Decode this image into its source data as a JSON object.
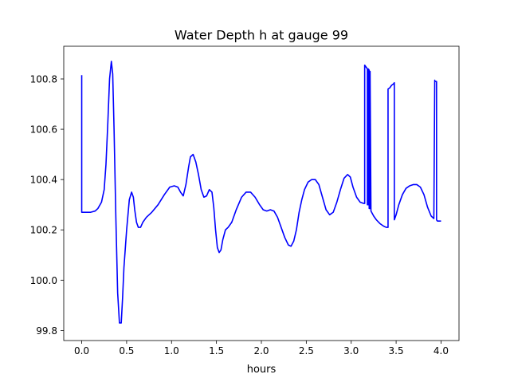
{
  "chart_data": {
    "type": "line",
    "title": "Water Depth h at gauge 99",
    "xlabel": "hours",
    "ylabel": "",
    "xlim": [
      -0.2,
      4.2
    ],
    "ylim": [
      99.76,
      100.93
    ],
    "xticks": [
      0.0,
      0.5,
      1.0,
      1.5,
      2.0,
      2.5,
      3.0,
      3.5,
      4.0
    ],
    "xtick_labels": [
      "0.0",
      "0.5",
      "1.0",
      "1.5",
      "2.0",
      "2.5",
      "3.0",
      "3.5",
      "4.0"
    ],
    "yticks": [
      99.8,
      100.0,
      100.2,
      100.4,
      100.6,
      100.8
    ],
    "ytick_labels": [
      "99.8",
      "100.0",
      "100.2",
      "100.4",
      "100.6",
      "100.8"
    ],
    "grid": false,
    "series": [
      {
        "color": "#0000ff",
        "x": [
          0.0,
          0.0,
          0.001,
          0.05,
          0.1,
          0.15,
          0.18,
          0.22,
          0.25,
          0.27,
          0.29,
          0.31,
          0.33,
          0.345,
          0.36,
          0.38,
          0.4,
          0.42,
          0.44,
          0.455,
          0.47,
          0.5,
          0.53,
          0.555,
          0.575,
          0.59,
          0.61,
          0.63,
          0.655,
          0.68,
          0.72,
          0.78,
          0.85,
          0.92,
          0.98,
          1.03,
          1.07,
          1.1,
          1.13,
          1.16,
          1.19,
          1.21,
          1.24,
          1.27,
          1.3,
          1.33,
          1.36,
          1.39,
          1.42,
          1.45,
          1.47,
          1.49,
          1.51,
          1.53,
          1.55,
          1.57,
          1.6,
          1.63,
          1.67,
          1.72,
          1.78,
          1.83,
          1.88,
          1.93,
          1.98,
          2.02,
          2.06,
          2.1,
          2.14,
          2.18,
          2.22,
          2.26,
          2.3,
          2.33,
          2.36,
          2.39,
          2.42,
          2.45,
          2.48,
          2.52,
          2.56,
          2.6,
          2.64,
          2.68,
          2.72,
          2.76,
          2.8,
          2.84,
          2.88,
          2.92,
          2.96,
          2.99,
          3.02,
          3.06,
          3.1,
          3.14,
          3.15,
          3.15,
          3.16,
          3.18,
          3.18,
          3.19,
          3.19,
          3.2,
          3.2,
          3.21,
          3.21,
          3.22,
          3.25,
          3.28,
          3.32,
          3.36,
          3.39,
          3.41,
          3.41,
          3.43,
          3.45,
          3.47,
          3.48,
          3.48,
          3.5,
          3.53,
          3.57,
          3.61,
          3.65,
          3.69,
          3.73,
          3.77,
          3.81,
          3.85,
          3.89,
          3.92,
          3.93,
          3.93,
          3.95,
          3.95,
          3.96,
          3.97,
          4.0
        ],
        "y": [
          100.815,
          100.27,
          100.27,
          100.27,
          100.27,
          100.275,
          100.285,
          100.31,
          100.36,
          100.46,
          100.62,
          100.8,
          100.87,
          100.82,
          100.6,
          100.25,
          99.95,
          99.83,
          99.83,
          99.93,
          100.05,
          100.2,
          100.32,
          100.35,
          100.33,
          100.28,
          100.23,
          100.21,
          100.21,
          100.23,
          100.25,
          100.27,
          100.3,
          100.34,
          100.37,
          100.375,
          100.37,
          100.35,
          100.335,
          100.38,
          100.45,
          100.49,
          100.5,
          100.47,
          100.42,
          100.36,
          100.33,
          100.335,
          100.36,
          100.35,
          100.29,
          100.2,
          100.13,
          100.11,
          100.12,
          100.16,
          100.2,
          100.21,
          100.23,
          100.28,
          100.33,
          100.35,
          100.35,
          100.33,
          100.3,
          100.28,
          100.275,
          100.28,
          100.275,
          100.25,
          100.21,
          100.17,
          100.14,
          100.135,
          100.155,
          100.2,
          100.27,
          100.32,
          100.36,
          100.39,
          100.4,
          100.4,
          100.38,
          100.33,
          100.28,
          100.26,
          100.27,
          100.31,
          100.36,
          100.405,
          100.42,
          100.41,
          100.37,
          100.33,
          100.31,
          100.305,
          100.305,
          100.855,
          100.85,
          100.84,
          100.3,
          100.3,
          100.84,
          100.835,
          100.285,
          100.285,
          100.83,
          100.275,
          100.255,
          100.24,
          100.225,
          100.215,
          100.21,
          100.21,
          100.76,
          100.765,
          100.775,
          100.78,
          100.785,
          100.24,
          100.26,
          100.3,
          100.34,
          100.365,
          100.375,
          100.38,
          100.38,
          100.37,
          100.34,
          100.29,
          100.255,
          100.245,
          100.795,
          100.79,
          100.79,
          100.24,
          100.235,
          100.235,
          100.235
        ]
      }
    ]
  }
}
